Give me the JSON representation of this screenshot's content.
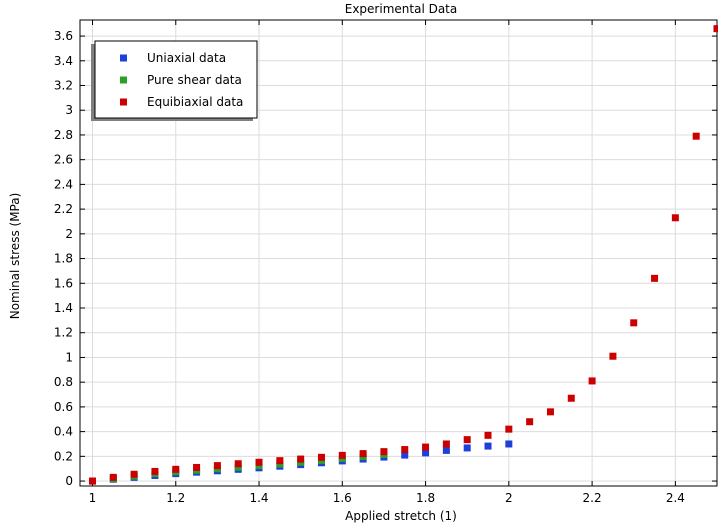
{
  "chart_data": {
    "type": "scatter",
    "title": "Experimental Data",
    "xlabel": "Applied stretch (1)",
    "ylabel": "Nominal stress (MPa)",
    "xlim": [
      0.97,
      2.5
    ],
    "ylim": [
      -0.04,
      3.73
    ],
    "xticks": [
      1,
      1.2,
      1.4,
      1.6,
      1.8,
      2,
      2.2,
      2.4
    ],
    "yticks": [
      0,
      0.2,
      0.4,
      0.6,
      0.8,
      1,
      1.2,
      1.4,
      1.6,
      1.8,
      2,
      2.2,
      2.4,
      2.6,
      2.8,
      3,
      3.2,
      3.4,
      3.6
    ],
    "grid": true,
    "legend_position": "top-left",
    "series": [
      {
        "name": "Uniaxial data",
        "color": "#1f3fd9",
        "points": [
          [
            1.0,
            0.0
          ],
          [
            1.05,
            0.015
          ],
          [
            1.1,
            0.03
          ],
          [
            1.15,
            0.045
          ],
          [
            1.2,
            0.06
          ],
          [
            1.25,
            0.072
          ],
          [
            1.3,
            0.083
          ],
          [
            1.35,
            0.095
          ],
          [
            1.4,
            0.107
          ],
          [
            1.45,
            0.12
          ],
          [
            1.5,
            0.133
          ],
          [
            1.55,
            0.148
          ],
          [
            1.6,
            0.163
          ],
          [
            1.65,
            0.178
          ],
          [
            1.7,
            0.194
          ],
          [
            1.75,
            0.21
          ],
          [
            1.8,
            0.228
          ],
          [
            1.85,
            0.248
          ],
          [
            1.9,
            0.268
          ],
          [
            1.95,
            0.283
          ],
          [
            2.0,
            0.3
          ]
        ]
      },
      {
        "name": "Pure shear data",
        "color": "#2aa02a",
        "points": [
          [
            1.0,
            0.0
          ],
          [
            1.05,
            0.02
          ],
          [
            1.1,
            0.04
          ],
          [
            1.15,
            0.06
          ],
          [
            1.2,
            0.075
          ],
          [
            1.25,
            0.087
          ],
          [
            1.3,
            0.1
          ],
          [
            1.35,
            0.112
          ],
          [
            1.4,
            0.125
          ],
          [
            1.45,
            0.138
          ],
          [
            1.5,
            0.152
          ],
          [
            1.55,
            0.167
          ],
          [
            1.6,
            0.182
          ],
          [
            1.65,
            0.198
          ],
          [
            1.7,
            0.215
          ]
        ]
      },
      {
        "name": "Equibiaxial data",
        "color": "#cc0000",
        "points": [
          [
            1.0,
            0.0
          ],
          [
            1.05,
            0.03
          ],
          [
            1.1,
            0.055
          ],
          [
            1.15,
            0.078
          ],
          [
            1.2,
            0.095
          ],
          [
            1.25,
            0.11
          ],
          [
            1.3,
            0.125
          ],
          [
            1.35,
            0.14
          ],
          [
            1.4,
            0.152
          ],
          [
            1.45,
            0.165
          ],
          [
            1.5,
            0.178
          ],
          [
            1.55,
            0.192
          ],
          [
            1.6,
            0.208
          ],
          [
            1.65,
            0.222
          ],
          [
            1.7,
            0.238
          ],
          [
            1.75,
            0.255
          ],
          [
            1.8,
            0.275
          ],
          [
            1.85,
            0.3
          ],
          [
            1.9,
            0.335
          ],
          [
            1.95,
            0.37
          ],
          [
            2.0,
            0.42
          ],
          [
            2.05,
            0.48
          ],
          [
            2.1,
            0.56
          ],
          [
            2.15,
            0.67
          ],
          [
            2.2,
            0.81
          ],
          [
            2.25,
            1.01
          ],
          [
            2.3,
            1.28
          ],
          [
            2.35,
            1.64
          ],
          [
            2.4,
            2.13
          ],
          [
            2.45,
            2.79
          ],
          [
            2.5,
            3.66
          ]
        ]
      }
    ]
  }
}
